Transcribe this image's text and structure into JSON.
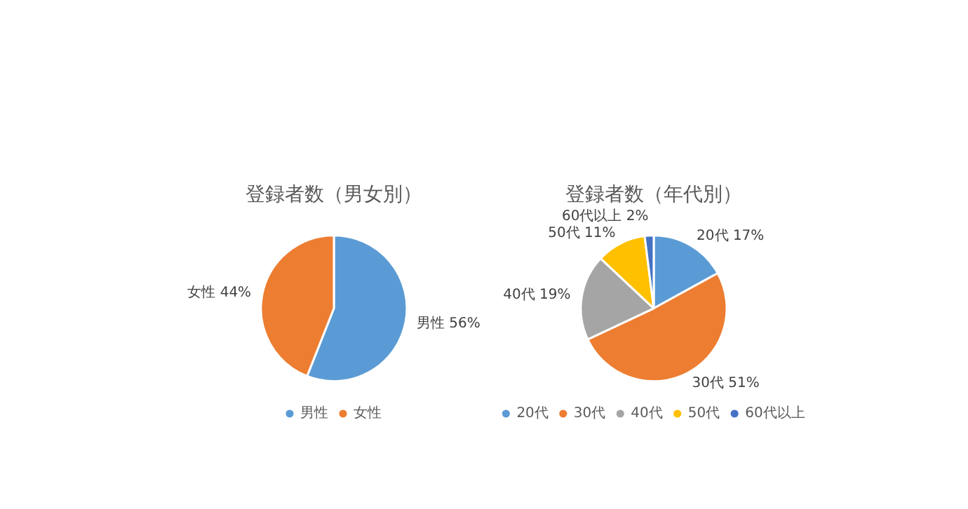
{
  "chart_data": [
    {
      "type": "pie",
      "title": "登録者数（男女別）",
      "categories": [
        "男性",
        "女性"
      ],
      "values": [
        56,
        44
      ],
      "value_labels": [
        "56%",
        "44%"
      ],
      "colors": [
        "#5b9bd5",
        "#ed7d31"
      ],
      "legend": "bottom"
    },
    {
      "type": "pie",
      "title": "登録者数（年代別）",
      "categories": [
        "20代",
        "30代",
        "40代",
        "50代",
        "60代以上"
      ],
      "values": [
        17,
        51,
        19,
        11,
        2
      ],
      "value_labels": [
        "17%",
        "51%",
        "19%",
        "11%",
        "2%"
      ],
      "colors": [
        "#5b9bd5",
        "#ed7d31",
        "#a5a5a5",
        "#ffc000",
        "#4472c4"
      ],
      "legend": "bottom"
    }
  ]
}
